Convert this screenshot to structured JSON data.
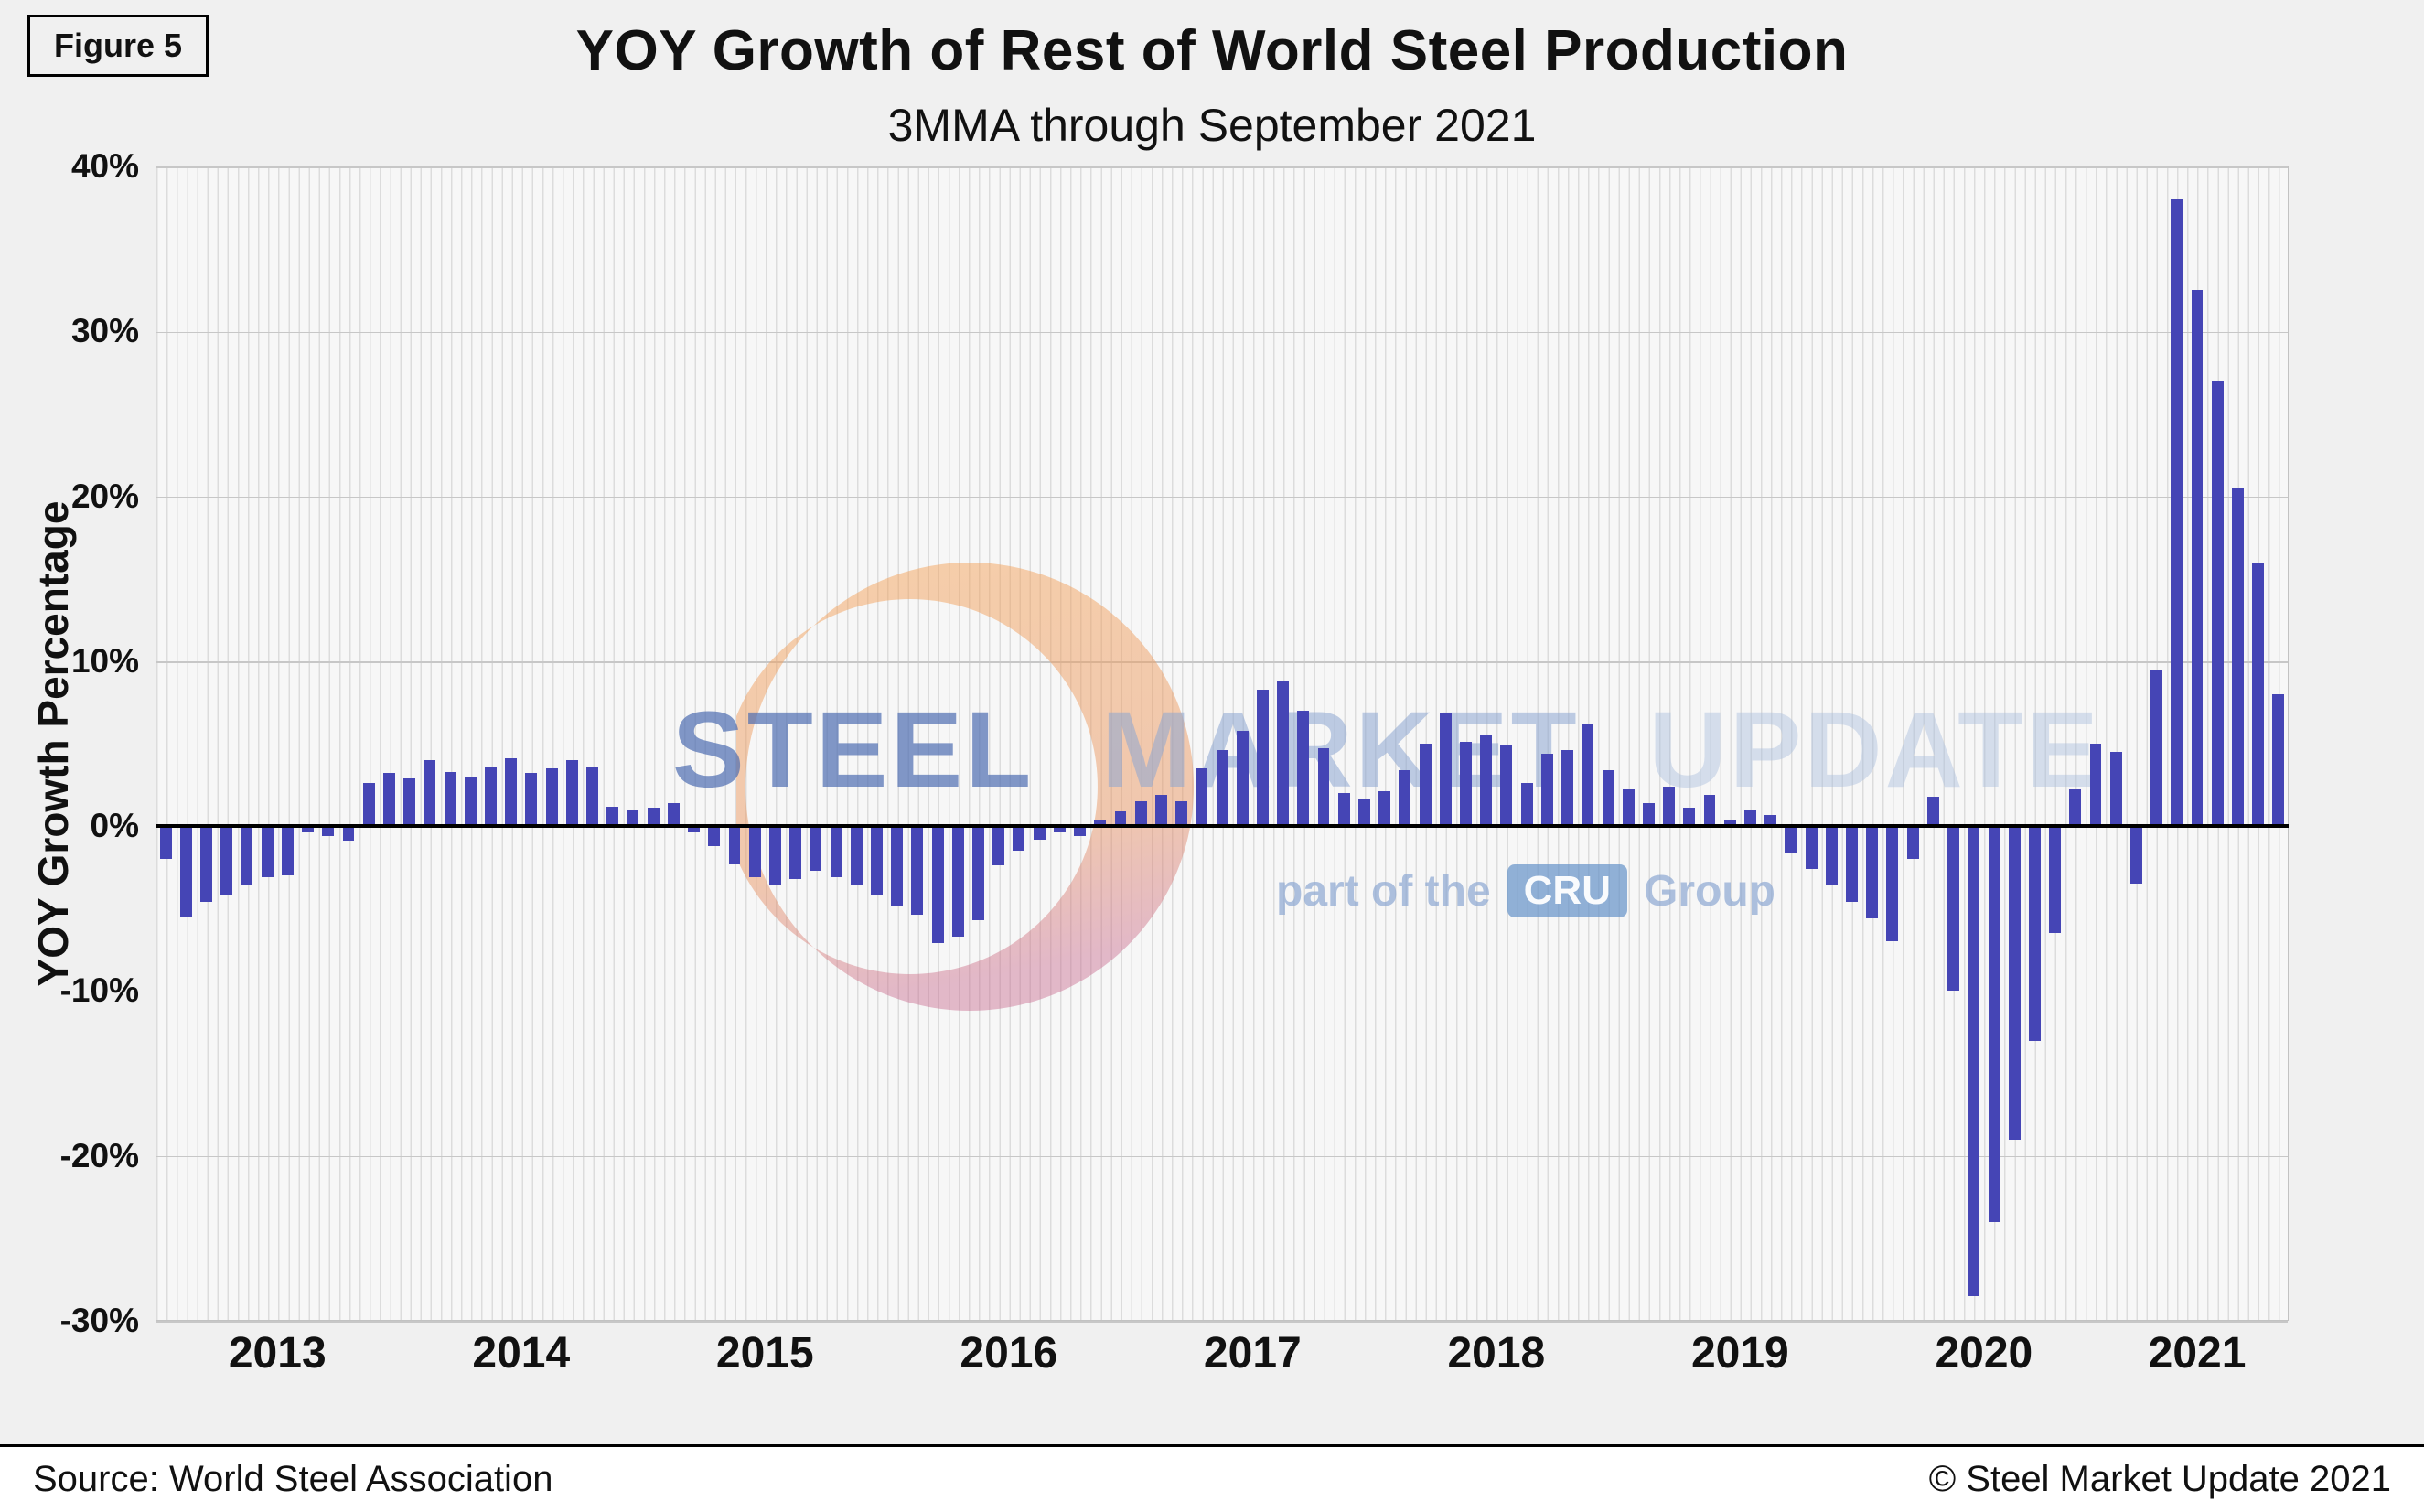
{
  "figure_label": "Figure 5",
  "title": "YOY Growth of Rest of World Steel Production",
  "subtitle": "3MMA through September 2021",
  "watermark": {
    "word1": "STEEL",
    "word2": "MARKET",
    "word3": "UPDATE",
    "tagline_prefix": "part of the",
    "tagline_badge": "CRU",
    "tagline_suffix": "Group"
  },
  "footer": {
    "source": "Source: World Steel Association",
    "copyright": "© Steel Market Update 2021"
  },
  "chart_data": {
    "type": "bar",
    "title": "YOY Growth of Rest of World Steel Production",
    "subtitle": "3MMA through September 2021",
    "xlabel": "",
    "ylabel": "YOY Growth Percentage",
    "ylim": [
      -30,
      40
    ],
    "ytick_labels": [
      "40%",
      "30%",
      "20%",
      "10%",
      "0%",
      "-10%",
      "-20%",
      "-30%"
    ],
    "x_tick_labels": [
      "2013",
      "2014",
      "2015",
      "2016",
      "2017",
      "2018",
      "2019",
      "2020",
      "2021"
    ],
    "frequency": "monthly",
    "start": {
      "year": 2013,
      "month": 1
    },
    "end": {
      "year": 2021,
      "month": 9
    },
    "grid": true,
    "legend": false,
    "bar_color": "#4545B5",
    "values": [
      -2.0,
      -5.5,
      -4.6,
      -4.2,
      -3.6,
      -3.1,
      -3.0,
      -0.4,
      -0.6,
      -0.9,
      2.6,
      3.2,
      2.9,
      4.0,
      3.3,
      3.0,
      3.6,
      4.1,
      3.2,
      3.5,
      4.0,
      3.6,
      1.2,
      1.0,
      1.1,
      1.4,
      -0.4,
      -1.2,
      -2.3,
      -3.1,
      -3.6,
      -3.2,
      -2.7,
      -3.1,
      -3.6,
      -4.2,
      -4.8,
      -5.4,
      -7.1,
      -6.7,
      -5.7,
      -2.4,
      -1.5,
      -0.8,
      -0.4,
      -0.6,
      0.4,
      0.9,
      1.5,
      1.9,
      1.5,
      3.5,
      4.6,
      5.8,
      8.3,
      8.8,
      7.0,
      4.7,
      2.0,
      1.6,
      2.1,
      3.4,
      5.0,
      6.9,
      5.1,
      5.5,
      4.9,
      2.6,
      4.4,
      4.6,
      6.2,
      3.4,
      2.2,
      1.4,
      2.4,
      1.1,
      1.9,
      0.4,
      1.0,
      0.7,
      -1.6,
      -2.6,
      -3.6,
      -4.6,
      -5.6,
      -7.0,
      -2.0,
      1.8,
      -10.0,
      -28.5,
      -24.0,
      -19.0,
      -13.0,
      -6.5,
      2.2,
      5.0,
      4.5,
      -3.5,
      9.5,
      38.0,
      32.5,
      27.0,
      20.5,
      16.0,
      8.0
    ]
  }
}
